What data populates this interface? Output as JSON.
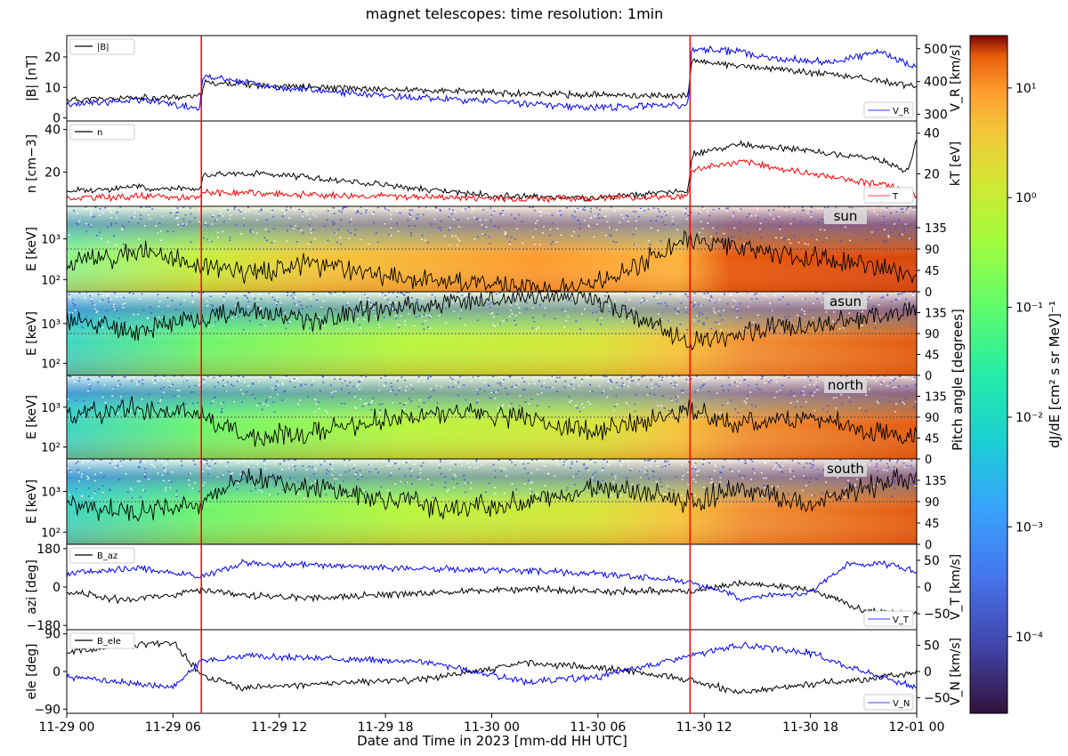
{
  "figure": {
    "title": "magnet telescopes:   time resolution: 1min",
    "xlabel": "Date and Time in 2023 [mm-dd HH UTC]",
    "xticks": [
      "11-29 00",
      "11-29 06",
      "11-29 12",
      "11-29 18",
      "11-30 00",
      "11-30 06",
      "11-30 12",
      "11-30 18",
      "12-01 00"
    ],
    "x_range_hours": [
      0,
      48
    ],
    "event_lines_hours": [
      7.6,
      35.2
    ],
    "event_line_color": "#ff0000",
    "colorbar": {
      "label": "dJ/dE [cm² s sr MeV]⁻¹",
      "scale": "log",
      "range": [
        2e-05,
        30
      ],
      "ticks": [
        "10¹",
        "10⁰",
        "10⁻¹",
        "10⁻²",
        "10⁻³",
        "10⁻⁴"
      ],
      "tick_values": [
        10,
        1,
        0.1,
        0.01,
        0.001,
        0.0001
      ],
      "colormap": "turbo"
    },
    "pitch_angle_label": "Pitch angle [degrees]"
  },
  "chart_data": [
    {
      "type": "line",
      "panel": "B",
      "ylabel": "|B| [nT]",
      "yticks": [
        0,
        10,
        20
      ],
      "ylim": [
        -1,
        27
      ],
      "y2label": "V_R [km/s]",
      "y2ticks": [
        300,
        400,
        500
      ],
      "y2lim": [
        280,
        540
      ],
      "series": [
        {
          "name": "|B|",
          "axis": "left",
          "color": "#000000",
          "x": [
            0,
            3,
            6,
            7.6,
            7.7,
            10,
            14,
            20,
            26,
            30,
            35.1,
            35.3,
            38,
            42,
            45,
            48
          ],
          "y": [
            6,
            6.3,
            6.8,
            7,
            11.5,
            11,
            10,
            9,
            8,
            7.5,
            7.2,
            19,
            17,
            15,
            13,
            10
          ]
        },
        {
          "name": "V_R",
          "axis": "right",
          "color": "#0000ff",
          "x": [
            0,
            4,
            7.5,
            7.7,
            12,
            18,
            24,
            30,
            35.1,
            35.3,
            38,
            40,
            43,
            46,
            48
          ],
          "y": [
            330,
            345,
            320,
            420,
            380,
            355,
            340,
            320,
            330,
            500,
            490,
            470,
            460,
            490,
            440
          ]
        }
      ]
    },
    {
      "type": "line",
      "panel": "n",
      "ylabel": "n [cm−3]",
      "yticks": [
        20,
        40
      ],
      "ylim": [
        4,
        44
      ],
      "y2label": "kT [eV]",
      "y2ticks": [
        20,
        40
      ],
      "y2lim": [
        4,
        46
      ],
      "series": [
        {
          "name": "n",
          "axis": "left",
          "color": "#000000",
          "x": [
            0,
            4,
            7.5,
            7.7,
            12,
            18,
            24,
            30,
            35.1,
            35.3,
            38,
            42,
            46,
            47.5,
            48
          ],
          "y": [
            11,
            13,
            12,
            19,
            19,
            14,
            9,
            8,
            11,
            28,
            33,
            30,
            26,
            20,
            35
          ]
        },
        {
          "name": "T",
          "axis": "right",
          "color": "#ff0000",
          "x": [
            0,
            4,
            7.5,
            7.7,
            12,
            18,
            24,
            30,
            35.1,
            35.3,
            38,
            42,
            46,
            48
          ],
          "y": [
            8,
            9,
            8,
            11,
            10,
            9,
            8,
            8,
            9,
            22,
            26,
            20,
            15,
            10
          ]
        }
      ]
    },
    {
      "type": "heatmap",
      "panel": "sun",
      "label": "sun",
      "ylabel": "E [keV]",
      "yscale": "log",
      "yticks": [
        "10²",
        "10³"
      ],
      "y2ticks": [
        0,
        45,
        90,
        135
      ],
      "y2lim": [
        0,
        180
      ],
      "pitch_angle_series": {
        "color": "#000000",
        "x": [
          0,
          4,
          7.6,
          10,
          14,
          18,
          22,
          26,
          28,
          30,
          35.2,
          38,
          42,
          45,
          48
        ],
        "y": [
          60,
          85,
          55,
          40,
          60,
          35,
          25,
          10,
          5,
          20,
          110,
          90,
          70,
          60,
          35
        ]
      }
    },
    {
      "type": "heatmap",
      "panel": "asun",
      "label": "asun",
      "ylabel": "E [keV]",
      "yscale": "log",
      "yticks": [
        "10²",
        "10³"
      ],
      "y2ticks": [
        0,
        45,
        90,
        135
      ],
      "y2lim": [
        0,
        180
      ],
      "pitch_angle_series": {
        "color": "#000000",
        "x": [
          0,
          4,
          7.6,
          10,
          14,
          18,
          22,
          26,
          28,
          30,
          35.2,
          38,
          42,
          45,
          48
        ],
        "y": [
          120,
          95,
          125,
          140,
          120,
          145,
          155,
          170,
          175,
          160,
          70,
          90,
          110,
          120,
          145
        ]
      }
    },
    {
      "type": "heatmap",
      "panel": "north",
      "label": "north",
      "ylabel": "E [keV]",
      "yscale": "log",
      "yticks": [
        "10²",
        "10³"
      ],
      "y2ticks": [
        0,
        45,
        90,
        135
      ],
      "y2lim": [
        0,
        180
      ],
      "pitch_angle_series": {
        "color": "#000000",
        "x": [
          0,
          4,
          7.6,
          10,
          14,
          18,
          22,
          26,
          28,
          30,
          35.2,
          38,
          42,
          45,
          48
        ],
        "y": [
          95,
          110,
          100,
          45,
          60,
          85,
          100,
          85,
          70,
          60,
          105,
          70,
          95,
          60,
          50
        ]
      }
    },
    {
      "type": "heatmap",
      "panel": "south",
      "label": "south",
      "ylabel": "E [keV]",
      "yscale": "log",
      "yticks": [
        "10²",
        "10³"
      ],
      "y2ticks": [
        0,
        45,
        90,
        135
      ],
      "y2lim": [
        0,
        180
      ],
      "pitch_angle_series": {
        "color": "#000000",
        "x": [
          0,
          4,
          7.6,
          10,
          14,
          18,
          22,
          26,
          28,
          30,
          35.2,
          38,
          42,
          45,
          48
        ],
        "y": [
          80,
          70,
          90,
          145,
          120,
          95,
          75,
          90,
          100,
          125,
          90,
          115,
          80,
          120,
          140
        ]
      }
    },
    {
      "type": "line",
      "panel": "azi",
      "ylabel": "azi [deg]",
      "yticks": [
        -180,
        0,
        180
      ],
      "ylim": [
        -200,
        200
      ],
      "y2label": "V_T [km/s]",
      "y2ticks": [
        -50,
        0,
        50
      ],
      "y2lim": [
        -80,
        80
      ],
      "series": [
        {
          "name": "B_az",
          "axis": "left",
          "color": "#000000",
          "x": [
            0,
            3,
            6,
            7.6,
            10,
            14,
            20,
            26,
            30,
            35.2,
            38,
            42,
            45,
            48
          ],
          "y": [
            -20,
            -60,
            -40,
            -10,
            -40,
            -50,
            -30,
            -10,
            -20,
            -20,
            20,
            -10,
            -110,
            -130
          ]
        },
        {
          "name": "V_T",
          "axis": "right",
          "color": "#0000ff",
          "x": [
            0,
            4,
            7.6,
            10,
            14,
            20,
            26,
            30,
            35.2,
            38,
            42,
            44,
            46,
            48
          ],
          "y": [
            25,
            35,
            20,
            45,
            40,
            35,
            30,
            25,
            10,
            -20,
            -10,
            40,
            45,
            30
          ]
        }
      ]
    },
    {
      "type": "line",
      "panel": "ele",
      "ylabel": "ele [deg]",
      "yticks": [
        -90,
        0,
        90
      ],
      "ylim": [
        -100,
        100
      ],
      "y2label": "V_N [km/s]",
      "y2ticks": [
        -50,
        0,
        50
      ],
      "y2lim": [
        -80,
        80
      ],
      "series": [
        {
          "name": "B_ele",
          "axis": "left",
          "color": "#000000",
          "x": [
            0,
            3,
            6,
            7.6,
            10,
            14,
            20,
            26,
            30,
            35.2,
            38,
            42,
            45,
            48
          ],
          "y": [
            45,
            60,
            70,
            -10,
            -40,
            -30,
            -20,
            20,
            10,
            -20,
            -50,
            -30,
            -20,
            0
          ]
        },
        {
          "name": "V_N",
          "axis": "right",
          "color": "#0000ff",
          "x": [
            0,
            3,
            6,
            7.6,
            10,
            14,
            20,
            26,
            30,
            35.2,
            38,
            42,
            45,
            48
          ],
          "y": [
            -10,
            -20,
            -30,
            20,
            30,
            25,
            20,
            -20,
            -10,
            30,
            50,
            35,
            0,
            -30
          ]
        }
      ]
    }
  ]
}
